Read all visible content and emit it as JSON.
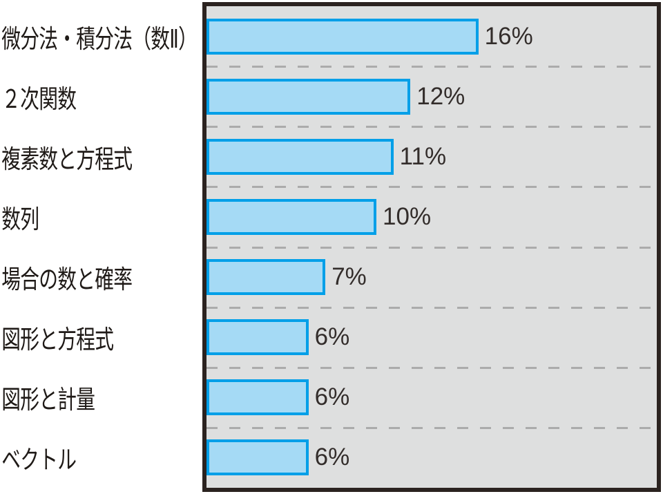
{
  "chart_data": {
    "type": "bar",
    "orientation": "horizontal",
    "title": "",
    "xlabel": "",
    "ylabel": "",
    "unit": "%",
    "categories": [
      "微分法・積分法（数Ⅱ）",
      "２次関数",
      "複素数と方程式",
      "数列",
      "場合の数と確率",
      "図形と方程式",
      "図形と計量",
      "ベクトル"
    ],
    "values": [
      16,
      12,
      11,
      10,
      7,
      6,
      6,
      6
    ],
    "value_labels": [
      "16%",
      "12%",
      "11%",
      "10%",
      "7%",
      "6%",
      "6%",
      "6%"
    ],
    "xmax": 26.5,
    "grid": "dashed horizontal separators between rows",
    "legend": "none"
  },
  "colors": {
    "bar_fill": "#a5daf5",
    "bar_border": "#009fe8",
    "plot_background": "#dedfdf",
    "frame_border": "#2b2320",
    "separator_dash": "#ababab",
    "category_text": "#1f1a17",
    "value_text": "#332d2b"
  }
}
